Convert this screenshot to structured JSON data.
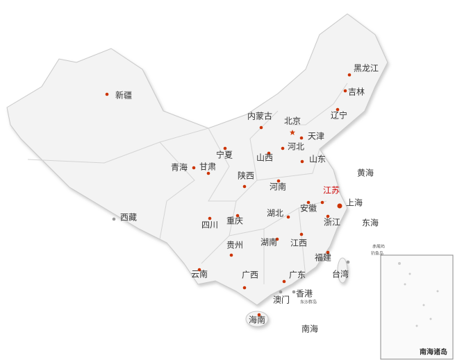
{
  "provinces": [
    {
      "name": "黑龙江"
    },
    {
      "name": "吉林"
    },
    {
      "name": "辽宁"
    },
    {
      "name": "新疆"
    },
    {
      "name": "内蒙古"
    },
    {
      "name": "北京"
    },
    {
      "name": "天津"
    },
    {
      "name": "河北"
    },
    {
      "name": "宁夏"
    },
    {
      "name": "山西"
    },
    {
      "name": "山东"
    },
    {
      "name": "青海"
    },
    {
      "name": "甘肃"
    },
    {
      "name": "陕西"
    },
    {
      "name": "河南"
    },
    {
      "name": "江苏",
      "color": "#cc0000"
    },
    {
      "name": "上海"
    },
    {
      "name": "安徽"
    },
    {
      "name": "西藏"
    },
    {
      "name": "湖北"
    },
    {
      "name": "浙江"
    },
    {
      "name": "四川"
    },
    {
      "name": "重庆"
    },
    {
      "name": "贵州"
    },
    {
      "name": "湖南"
    },
    {
      "name": "江西"
    },
    {
      "name": "福建"
    },
    {
      "name": "云南"
    },
    {
      "name": "广西"
    },
    {
      "name": "广东"
    },
    {
      "name": "台湾"
    },
    {
      "name": "香港"
    },
    {
      "name": "澳门"
    },
    {
      "name": "海南"
    }
  ],
  "seas": [
    "黄海",
    "东海",
    "南海"
  ],
  "islands": [
    "赤尾屿",
    "钓鱼岛",
    "东沙群岛"
  ],
  "inset": {
    "title": "南海诸岛"
  }
}
